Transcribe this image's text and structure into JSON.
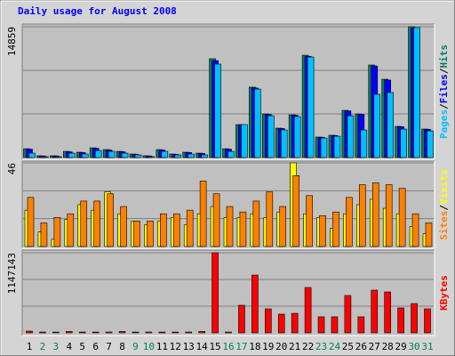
{
  "title": "Daily usage for August 2008",
  "legend_separator": "/",
  "chart_data": [
    {
      "type": "bar",
      "ylim": [
        0,
        14859
      ],
      "yticks": [
        14859
      ],
      "series": [
        {
          "name": "Hits",
          "color": "#00805c",
          "values": [
            1000,
            200,
            200,
            700,
            600,
            1100,
            900,
            700,
            400,
            200,
            900,
            400,
            600,
            500,
            11220,
            1000,
            3740,
            7990,
            4950,
            3335,
            4850,
            11620,
            2325,
            2527,
            5357,
            4950,
            10510,
            8895,
            3537,
            14859,
            3235
          ]
        },
        {
          "name": "Files",
          "color": "#0000ff",
          "values": [
            950,
            180,
            180,
            650,
            560,
            1050,
            850,
            650,
            370,
            180,
            850,
            370,
            560,
            460,
            11010,
            950,
            3700,
            7900,
            4900,
            3300,
            4800,
            11500,
            2300,
            2500,
            5300,
            4900,
            10400,
            8800,
            3500,
            14700,
            3200
          ]
        },
        {
          "name": "Pages",
          "color": "#00c0ff",
          "values": [
            500,
            100,
            100,
            500,
            400,
            800,
            700,
            500,
            300,
            100,
            700,
            300,
            400,
            300,
            10610,
            700,
            3740,
            7780,
            4750,
            3130,
            4650,
            11420,
            2220,
            2420,
            4750,
            3130,
            7180,
            7380,
            3230,
            14760,
            3030
          ]
        }
      ]
    },
    {
      "type": "bar",
      "ylim": [
        0,
        46
      ],
      "yticks": [
        46
      ],
      "series": [
        {
          "name": "Visits",
          "color": "#ffff00",
          "values": [
            20,
            8,
            4,
            15,
            23,
            20,
            30,
            18,
            14,
            12,
            14,
            16,
            12,
            18,
            22,
            16,
            16,
            18,
            16,
            19,
            46,
            18,
            16,
            10,
            18,
            23,
            26,
            21,
            18,
            11,
            7
          ]
        },
        {
          "name": "Sites",
          "color": "#ff8000",
          "values": [
            27,
            13,
            16,
            18,
            25,
            25,
            29,
            22,
            14,
            14,
            18,
            18,
            20,
            36,
            29,
            22,
            19,
            25,
            30,
            22,
            39,
            28,
            17,
            19,
            27,
            34,
            35,
            34,
            32,
            18,
            13
          ]
        }
      ]
    },
    {
      "type": "bar",
      "ylim": [
        0,
        1147143
      ],
      "yticks": [
        1147143
      ],
      "categories": [
        "1",
        "2",
        "3",
        "4",
        "5",
        "6",
        "7",
        "8",
        "9",
        "10",
        "11",
        "12",
        "13",
        "14",
        "15",
        "16",
        "17",
        "18",
        "19",
        "20",
        "21",
        "22",
        "23",
        "24",
        "25",
        "26",
        "27",
        "28",
        "29",
        "30",
        "31"
      ],
      "category_colors": [
        "#000000",
        "#00805c",
        "#00805c",
        "#000000",
        "#000000",
        "#000000",
        "#000000",
        "#000000",
        "#00805c",
        "#00805c",
        "#000000",
        "#000000",
        "#000000",
        "#000000",
        "#000000",
        "#00805c",
        "#00805c",
        "#000000",
        "#000000",
        "#000000",
        "#000000",
        "#000000",
        "#00805c",
        "#00805c",
        "#000000",
        "#000000",
        "#000000",
        "#000000",
        "#000000",
        "#00805c",
        "#00805c"
      ],
      "series": [
        {
          "name": "KBytes",
          "color": "#ff0000",
          "values": [
            25000,
            12000,
            12000,
            20000,
            12000,
            12000,
            12000,
            20000,
            12000,
            12000,
            12000,
            12000,
            12000,
            20000,
            1147143,
            12000,
            395000,
            828000,
            344000,
            268000,
            280000,
            650000,
            230000,
            230000,
            535000,
            230000,
            612000,
            586000,
            357000,
            420000,
            344000
          ]
        }
      ]
    }
  ]
}
